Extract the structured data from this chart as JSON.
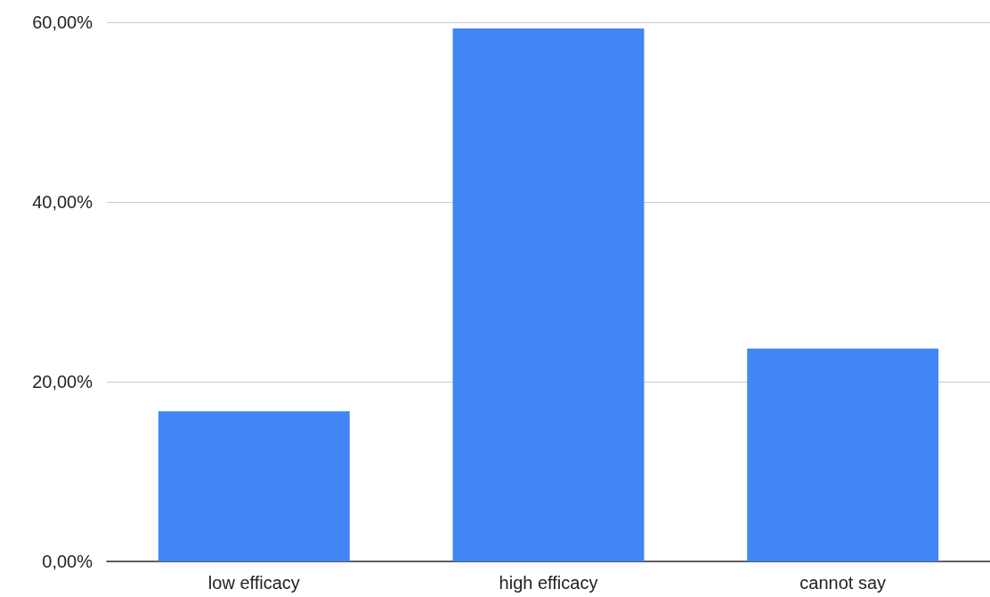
{
  "chart_data": {
    "type": "bar",
    "categories": [
      "low efficacy",
      "high efficacy",
      "cannot say"
    ],
    "values": [
      16.7,
      59.3,
      23.7
    ],
    "color": "#4285f4",
    "ylim": [
      0,
      60
    ],
    "yticks": [
      {
        "value": 0,
        "label": "0,00%"
      },
      {
        "value": 20,
        "label": "20,00%"
      },
      {
        "value": 40,
        "label": "40,00%"
      },
      {
        "value": 60,
        "label": "60,00%"
      }
    ],
    "grid": "y"
  }
}
